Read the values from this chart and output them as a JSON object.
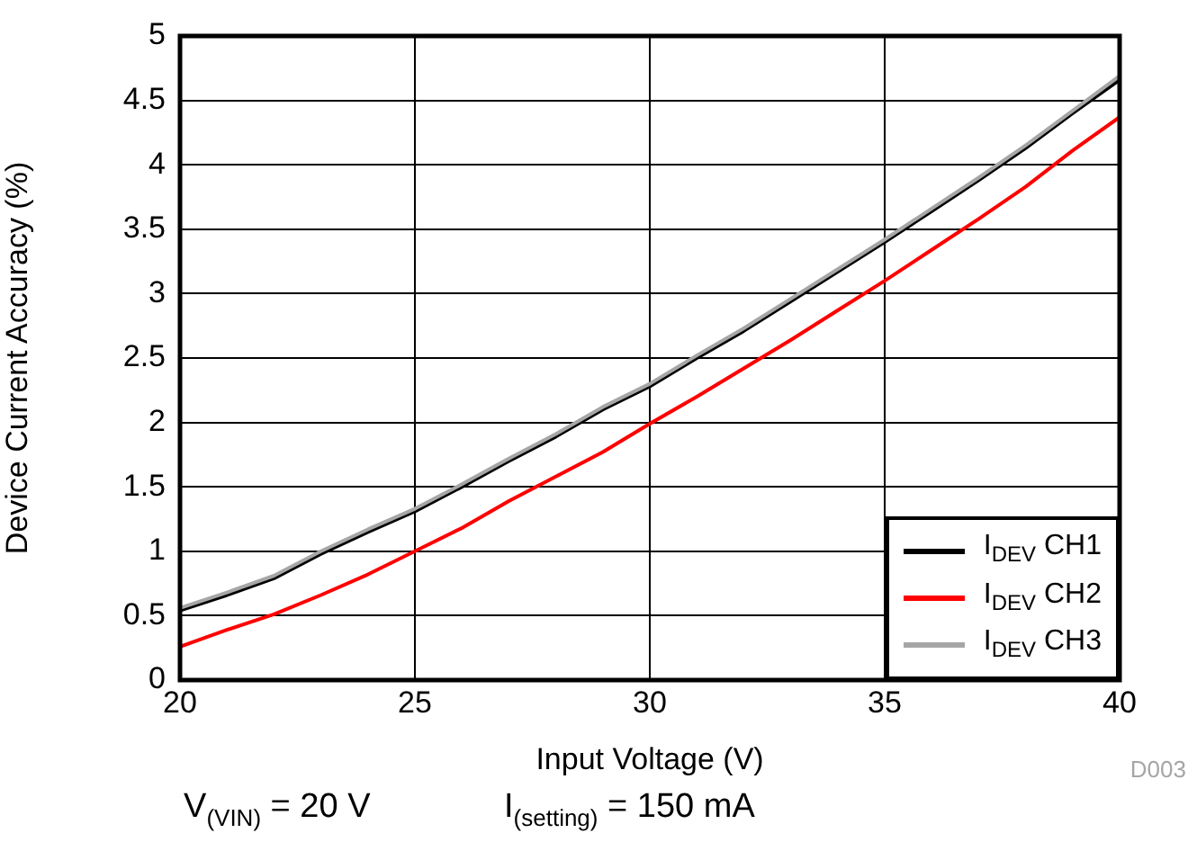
{
  "chart_data": {
    "type": "line",
    "xlabel": "Input Voltage (V)",
    "ylabel": "Device Current Accuracy (%)",
    "x": [
      20,
      21,
      22,
      23,
      24,
      25,
      26,
      27,
      28,
      29,
      30,
      31,
      32,
      33,
      34,
      35,
      36,
      37,
      38,
      39,
      40
    ],
    "series": [
      {
        "name": "I$_{DEV}$ CH1",
        "color": "#000000",
        "values": [
          0.54,
          0.66,
          0.79,
          0.98,
          1.15,
          1.31,
          1.5,
          1.7,
          1.89,
          2.1,
          2.28,
          2.5,
          2.71,
          2.94,
          3.17,
          3.4,
          3.64,
          3.88,
          4.13,
          4.4,
          4.66
        ]
      },
      {
        "name": "I$_{DEV}$ CH2",
        "color": "#ff0000",
        "values": [
          0.26,
          0.39,
          0.51,
          0.66,
          0.82,
          1.0,
          1.18,
          1.39,
          1.58,
          1.77,
          1.99,
          2.2,
          2.42,
          2.64,
          2.87,
          3.1,
          3.34,
          3.58,
          3.83,
          4.11,
          4.37
        ]
      },
      {
        "name": "I$_{DEV}$ CH3",
        "color": "#a6a6a6",
        "values": [
          0.56,
          0.68,
          0.81,
          1.0,
          1.17,
          1.33,
          1.52,
          1.72,
          1.91,
          2.12,
          2.3,
          2.52,
          2.73,
          2.96,
          3.19,
          3.42,
          3.66,
          3.9,
          4.15,
          4.42,
          4.69
        ]
      }
    ],
    "xlim": [
      20,
      40
    ],
    "xticks": [
      20,
      25,
      30,
      35,
      40
    ],
    "ylim": [
      0,
      5
    ],
    "yticks": [
      0,
      0.5,
      1,
      1.5,
      2,
      2.5,
      3,
      3.5,
      4,
      4.5,
      5
    ],
    "grid": true,
    "legend": "bottom right",
    "marker": "none",
    "line_style": "solid",
    "annotations": [
      "V$_{(VIN)}$ = 20 V",
      "I$_{(setting)}$ = 150 mA",
      "D003"
    ]
  }
}
